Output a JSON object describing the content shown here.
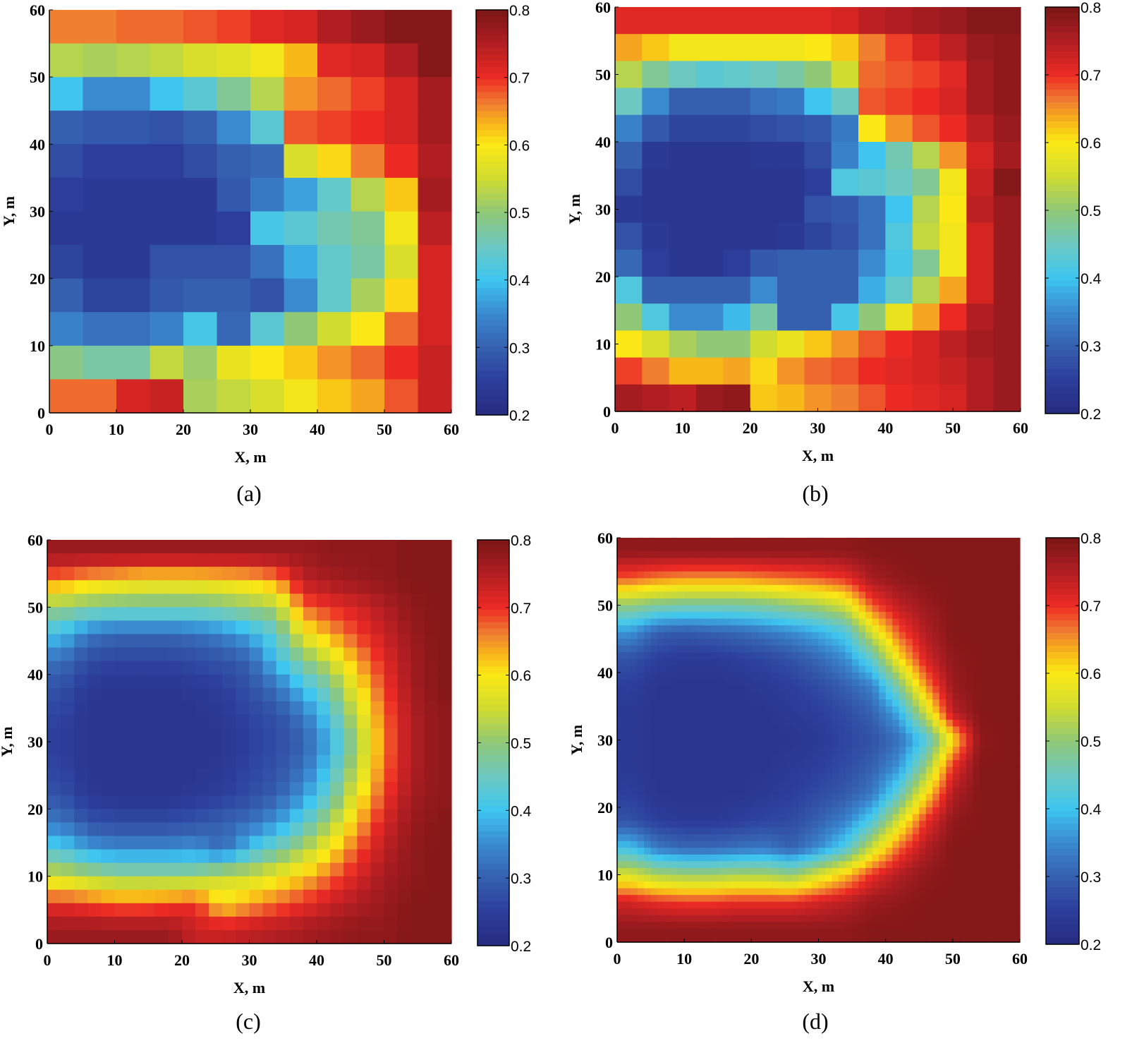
{
  "colormap": {
    "stops": [
      [
        0.2,
        "#272c80"
      ],
      [
        0.25,
        "#2c3e9a"
      ],
      [
        0.3,
        "#3560b0"
      ],
      [
        0.35,
        "#3a8ad0"
      ],
      [
        0.4,
        "#3ec6f0"
      ],
      [
        0.45,
        "#6cc8c0"
      ],
      [
        0.5,
        "#90c878"
      ],
      [
        0.55,
        "#d0dc30"
      ],
      [
        0.6,
        "#fbe816"
      ],
      [
        0.63,
        "#f8b818"
      ],
      [
        0.66,
        "#f08030"
      ],
      [
        0.7,
        "#ec2a24"
      ],
      [
        0.75,
        "#b01e22"
      ],
      [
        0.8,
        "#7a1616"
      ]
    ]
  },
  "chart_data": [
    {
      "type": "heatmap",
      "caption": "(a)",
      "xlabel": "X, m",
      "ylabel": "Y, m",
      "xlim": [
        0,
        60
      ],
      "ylim": [
        0,
        60
      ],
      "clim": [
        0.2,
        0.8
      ],
      "xticks": [
        "0",
        "10",
        "20",
        "30",
        "40",
        "50",
        "60"
      ],
      "yticks": [
        "0",
        "10",
        "20",
        "30",
        "40",
        "50",
        "60"
      ],
      "cbticks": [
        "0.2",
        "0.3",
        "0.4",
        "0.5",
        "0.6",
        "0.7",
        "0.8"
      ],
      "render_resolution": 12,
      "rows_top_to_bottom": [
        [
          0.66,
          0.66,
          0.67,
          0.67,
          0.68,
          0.69,
          0.71,
          0.72,
          0.75,
          0.77,
          0.79,
          0.79
        ],
        [
          0.53,
          0.52,
          0.53,
          0.54,
          0.56,
          0.57,
          0.59,
          0.63,
          0.71,
          0.72,
          0.75,
          0.79
        ],
        [
          0.4,
          0.35,
          0.35,
          0.4,
          0.43,
          0.48,
          0.53,
          0.65,
          0.67,
          0.69,
          0.72,
          0.76
        ],
        [
          0.3,
          0.29,
          0.29,
          0.28,
          0.3,
          0.35,
          0.43,
          0.68,
          0.69,
          0.7,
          0.72,
          0.76
        ],
        [
          0.27,
          0.25,
          0.25,
          0.25,
          0.27,
          0.3,
          0.31,
          0.56,
          0.61,
          0.66,
          0.7,
          0.75
        ],
        [
          0.25,
          0.24,
          0.24,
          0.24,
          0.24,
          0.29,
          0.33,
          0.37,
          0.44,
          0.53,
          0.62,
          0.76
        ],
        [
          0.24,
          0.24,
          0.24,
          0.24,
          0.24,
          0.25,
          0.41,
          0.43,
          0.46,
          0.48,
          0.59,
          0.74
        ],
        [
          0.26,
          0.24,
          0.24,
          0.28,
          0.28,
          0.28,
          0.32,
          0.38,
          0.44,
          0.47,
          0.56,
          0.72
        ],
        [
          0.3,
          0.26,
          0.26,
          0.29,
          0.3,
          0.3,
          0.28,
          0.35,
          0.44,
          0.52,
          0.61,
          0.72
        ],
        [
          0.34,
          0.32,
          0.32,
          0.34,
          0.41,
          0.31,
          0.43,
          0.5,
          0.55,
          0.6,
          0.67,
          0.72
        ],
        [
          0.49,
          0.47,
          0.47,
          0.54,
          0.51,
          0.58,
          0.6,
          0.62,
          0.65,
          0.67,
          0.7,
          0.73
        ],
        [
          0.67,
          0.67,
          0.72,
          0.73,
          0.52,
          0.54,
          0.56,
          0.59,
          0.62,
          0.64,
          0.68,
          0.73
        ]
      ]
    },
    {
      "type": "heatmap",
      "caption": "(b)",
      "xlabel": "X, m",
      "ylabel": "Y, m",
      "xlim": [
        0,
        60
      ],
      "ylim": [
        0,
        60
      ],
      "clim": [
        0.2,
        0.8
      ],
      "xticks": [
        "0",
        "10",
        "20",
        "30",
        "40",
        "50",
        "60"
      ],
      "yticks": [
        "0",
        "10",
        "20",
        "30",
        "40",
        "50",
        "60"
      ],
      "cbticks": [
        "0.2",
        "0.3",
        "0.4",
        "0.5",
        "0.6",
        "0.7",
        "0.8"
      ],
      "render_resolution": 15,
      "rows_top_to_bottom": [
        [
          0.71,
          0.71,
          0.71,
          0.71,
          0.71,
          0.71,
          0.71,
          0.71,
          0.72,
          0.74,
          0.75,
          0.76,
          0.77,
          0.79,
          0.79
        ],
        [
          0.64,
          0.62,
          0.59,
          0.59,
          0.59,
          0.59,
          0.59,
          0.6,
          0.62,
          0.66,
          0.69,
          0.72,
          0.74,
          0.77,
          0.78
        ],
        [
          0.53,
          0.48,
          0.45,
          0.43,
          0.44,
          0.45,
          0.47,
          0.5,
          0.55,
          0.67,
          0.68,
          0.69,
          0.71,
          0.76,
          0.78
        ],
        [
          0.45,
          0.35,
          0.3,
          0.3,
          0.3,
          0.32,
          0.33,
          0.4,
          0.45,
          0.68,
          0.69,
          0.7,
          0.72,
          0.76,
          0.78
        ],
        [
          0.34,
          0.29,
          0.26,
          0.26,
          0.26,
          0.27,
          0.28,
          0.29,
          0.33,
          0.6,
          0.65,
          0.68,
          0.7,
          0.74,
          0.77
        ],
        [
          0.3,
          0.24,
          0.23,
          0.23,
          0.23,
          0.24,
          0.24,
          0.27,
          0.34,
          0.4,
          0.46,
          0.53,
          0.65,
          0.72,
          0.76
        ],
        [
          0.27,
          0.23,
          0.23,
          0.23,
          0.23,
          0.23,
          0.23,
          0.25,
          0.42,
          0.43,
          0.45,
          0.48,
          0.59,
          0.73,
          0.79
        ],
        [
          0.24,
          0.23,
          0.23,
          0.23,
          0.23,
          0.23,
          0.23,
          0.28,
          0.29,
          0.32,
          0.4,
          0.53,
          0.6,
          0.74,
          0.77
        ],
        [
          0.28,
          0.24,
          0.23,
          0.23,
          0.23,
          0.23,
          0.24,
          0.26,
          0.28,
          0.32,
          0.42,
          0.54,
          0.59,
          0.72,
          0.77
        ],
        [
          0.31,
          0.25,
          0.23,
          0.23,
          0.25,
          0.29,
          0.3,
          0.3,
          0.3,
          0.35,
          0.41,
          0.48,
          0.59,
          0.72,
          0.77
        ],
        [
          0.42,
          0.3,
          0.3,
          0.3,
          0.3,
          0.35,
          0.3,
          0.3,
          0.3,
          0.38,
          0.44,
          0.53,
          0.64,
          0.72,
          0.77
        ],
        [
          0.5,
          0.42,
          0.35,
          0.35,
          0.39,
          0.47,
          0.3,
          0.3,
          0.41,
          0.5,
          0.58,
          0.64,
          0.7,
          0.75,
          0.77
        ],
        [
          0.6,
          0.56,
          0.52,
          0.5,
          0.5,
          0.55,
          0.58,
          0.62,
          0.65,
          0.68,
          0.7,
          0.72,
          0.74,
          0.76,
          0.77
        ],
        [
          0.69,
          0.66,
          0.63,
          0.63,
          0.64,
          0.61,
          0.65,
          0.67,
          0.68,
          0.7,
          0.71,
          0.72,
          0.73,
          0.75,
          0.77
        ],
        [
          0.76,
          0.75,
          0.74,
          0.77,
          0.78,
          0.62,
          0.63,
          0.65,
          0.66,
          0.68,
          0.7,
          0.71,
          0.72,
          0.75,
          0.77
        ]
      ]
    },
    {
      "type": "heatmap",
      "caption": "(c)",
      "xlabel": "X, m",
      "ylabel": "Y, m",
      "xlim": [
        0,
        60
      ],
      "ylim": [
        0,
        60
      ],
      "clim": [
        0.2,
        0.8
      ],
      "xticks": [
        "0",
        "10",
        "20",
        "30",
        "40",
        "50",
        "60"
      ],
      "yticks": [
        "0",
        "10",
        "20",
        "30",
        "40",
        "50",
        "60"
      ],
      "cbticks": [
        "0.2",
        "0.3",
        "0.4",
        "0.5",
        "0.6",
        "0.7",
        "0.8"
      ],
      "render_resolution": 30,
      "rows_top_to_bottom": [
        [
          0.77,
          0.77,
          0.77,
          0.77,
          0.77,
          0.77,
          0.77,
          0.77,
          0.77,
          0.77,
          0.78,
          0.78,
          0.78,
          0.79,
          0.79
        ],
        [
          0.66,
          0.63,
          0.62,
          0.6,
          0.6,
          0.6,
          0.61,
          0.62,
          0.65,
          0.74,
          0.76,
          0.77,
          0.78,
          0.79,
          0.79
        ],
        [
          0.5,
          0.48,
          0.47,
          0.47,
          0.47,
          0.47,
          0.48,
          0.5,
          0.52,
          0.67,
          0.7,
          0.72,
          0.75,
          0.78,
          0.79
        ],
        [
          0.4,
          0.33,
          0.31,
          0.31,
          0.31,
          0.32,
          0.34,
          0.38,
          0.44,
          0.58,
          0.64,
          0.69,
          0.73,
          0.77,
          0.79
        ],
        [
          0.32,
          0.27,
          0.26,
          0.26,
          0.26,
          0.27,
          0.28,
          0.3,
          0.4,
          0.48,
          0.55,
          0.64,
          0.71,
          0.76,
          0.79
        ],
        [
          0.28,
          0.24,
          0.23,
          0.23,
          0.23,
          0.24,
          0.25,
          0.28,
          0.32,
          0.4,
          0.47,
          0.59,
          0.69,
          0.76,
          0.79
        ],
        [
          0.26,
          0.23,
          0.23,
          0.23,
          0.23,
          0.23,
          0.24,
          0.26,
          0.28,
          0.33,
          0.42,
          0.55,
          0.67,
          0.75,
          0.78
        ],
        [
          0.25,
          0.23,
          0.23,
          0.23,
          0.23,
          0.23,
          0.23,
          0.25,
          0.27,
          0.3,
          0.38,
          0.51,
          0.66,
          0.75,
          0.78
        ],
        [
          0.26,
          0.23,
          0.23,
          0.23,
          0.23,
          0.23,
          0.24,
          0.26,
          0.28,
          0.32,
          0.41,
          0.54,
          0.67,
          0.75,
          0.78
        ],
        [
          0.28,
          0.24,
          0.23,
          0.23,
          0.23,
          0.24,
          0.25,
          0.27,
          0.3,
          0.36,
          0.45,
          0.58,
          0.69,
          0.76,
          0.78
        ],
        [
          0.33,
          0.28,
          0.27,
          0.27,
          0.27,
          0.28,
          0.3,
          0.32,
          0.36,
          0.43,
          0.52,
          0.63,
          0.72,
          0.77,
          0.79
        ],
        [
          0.42,
          0.37,
          0.35,
          0.35,
          0.35,
          0.36,
          0.31,
          0.4,
          0.46,
          0.52,
          0.6,
          0.68,
          0.74,
          0.78,
          0.79
        ],
        [
          0.55,
          0.52,
          0.5,
          0.5,
          0.5,
          0.5,
          0.55,
          0.55,
          0.58,
          0.62,
          0.67,
          0.72,
          0.76,
          0.78,
          0.79
        ],
        [
          0.7,
          0.69,
          0.67,
          0.67,
          0.68,
          0.7,
          0.6,
          0.64,
          0.67,
          0.7,
          0.73,
          0.75,
          0.77,
          0.79,
          0.79
        ],
        [
          0.77,
          0.77,
          0.77,
          0.77,
          0.77,
          0.73,
          0.73,
          0.74,
          0.75,
          0.76,
          0.77,
          0.78,
          0.78,
          0.79,
          0.79
        ]
      ]
    },
    {
      "type": "heatmap",
      "caption": "(d)",
      "xlabel": "X, m",
      "ylabel": "Y, m",
      "xlim": [
        0,
        60
      ],
      "ylim": [
        0,
        60
      ],
      "clim": [
        0.2,
        0.8
      ],
      "xticks": [
        "0",
        "10",
        "20",
        "30",
        "40",
        "50",
        "60"
      ],
      "yticks": [
        "0",
        "10",
        "20",
        "30",
        "40",
        "50",
        "60"
      ],
      "cbticks": [
        "0.2",
        "0.3",
        "0.4",
        "0.5",
        "0.6",
        "0.7",
        "0.8"
      ],
      "render_resolution": 60,
      "rows_top_to_bottom": [
        [
          0.78,
          0.78,
          0.78,
          0.78,
          0.78,
          0.78,
          0.78,
          0.78,
          0.78,
          0.79,
          0.79,
          0.79,
          0.79,
          0.79,
          0.79
        ],
        [
          0.68,
          0.66,
          0.65,
          0.65,
          0.65,
          0.66,
          0.67,
          0.68,
          0.7,
          0.76,
          0.78,
          0.79,
          0.79,
          0.79,
          0.79
        ],
        [
          0.5,
          0.48,
          0.47,
          0.47,
          0.47,
          0.48,
          0.5,
          0.52,
          0.56,
          0.68,
          0.74,
          0.77,
          0.79,
          0.79,
          0.79
        ],
        [
          0.36,
          0.3,
          0.29,
          0.3,
          0.31,
          0.33,
          0.35,
          0.38,
          0.42,
          0.56,
          0.68,
          0.75,
          0.79,
          0.79,
          0.79
        ],
        [
          0.28,
          0.25,
          0.24,
          0.24,
          0.25,
          0.26,
          0.28,
          0.31,
          0.35,
          0.44,
          0.6,
          0.72,
          0.78,
          0.79,
          0.79
        ],
        [
          0.25,
          0.23,
          0.23,
          0.23,
          0.23,
          0.24,
          0.25,
          0.27,
          0.3,
          0.34,
          0.48,
          0.65,
          0.77,
          0.79,
          0.79
        ],
        [
          0.24,
          0.23,
          0.23,
          0.23,
          0.23,
          0.23,
          0.24,
          0.25,
          0.27,
          0.3,
          0.38,
          0.55,
          0.74,
          0.79,
          0.79
        ],
        [
          0.24,
          0.23,
          0.23,
          0.23,
          0.23,
          0.23,
          0.23,
          0.24,
          0.26,
          0.28,
          0.32,
          0.42,
          0.6,
          0.78,
          0.79
        ],
        [
          0.24,
          0.23,
          0.23,
          0.23,
          0.23,
          0.23,
          0.24,
          0.25,
          0.27,
          0.3,
          0.36,
          0.5,
          0.7,
          0.79,
          0.79
        ],
        [
          0.25,
          0.23,
          0.23,
          0.23,
          0.23,
          0.24,
          0.25,
          0.27,
          0.29,
          0.33,
          0.44,
          0.6,
          0.75,
          0.79,
          0.79
        ],
        [
          0.28,
          0.25,
          0.24,
          0.24,
          0.25,
          0.26,
          0.27,
          0.3,
          0.34,
          0.42,
          0.56,
          0.7,
          0.78,
          0.79,
          0.79
        ],
        [
          0.4,
          0.33,
          0.31,
          0.31,
          0.32,
          0.33,
          0.3,
          0.35,
          0.42,
          0.55,
          0.67,
          0.75,
          0.79,
          0.79,
          0.79
        ],
        [
          0.56,
          0.52,
          0.51,
          0.51,
          0.52,
          0.52,
          0.5,
          0.56,
          0.62,
          0.7,
          0.75,
          0.78,
          0.79,
          0.79,
          0.79
        ],
        [
          0.72,
          0.7,
          0.69,
          0.69,
          0.7,
          0.7,
          0.7,
          0.72,
          0.74,
          0.77,
          0.78,
          0.79,
          0.79,
          0.79,
          0.79
        ],
        [
          0.78,
          0.78,
          0.78,
          0.78,
          0.78,
          0.78,
          0.78,
          0.78,
          0.78,
          0.79,
          0.79,
          0.79,
          0.79,
          0.79,
          0.79
        ]
      ]
    }
  ]
}
